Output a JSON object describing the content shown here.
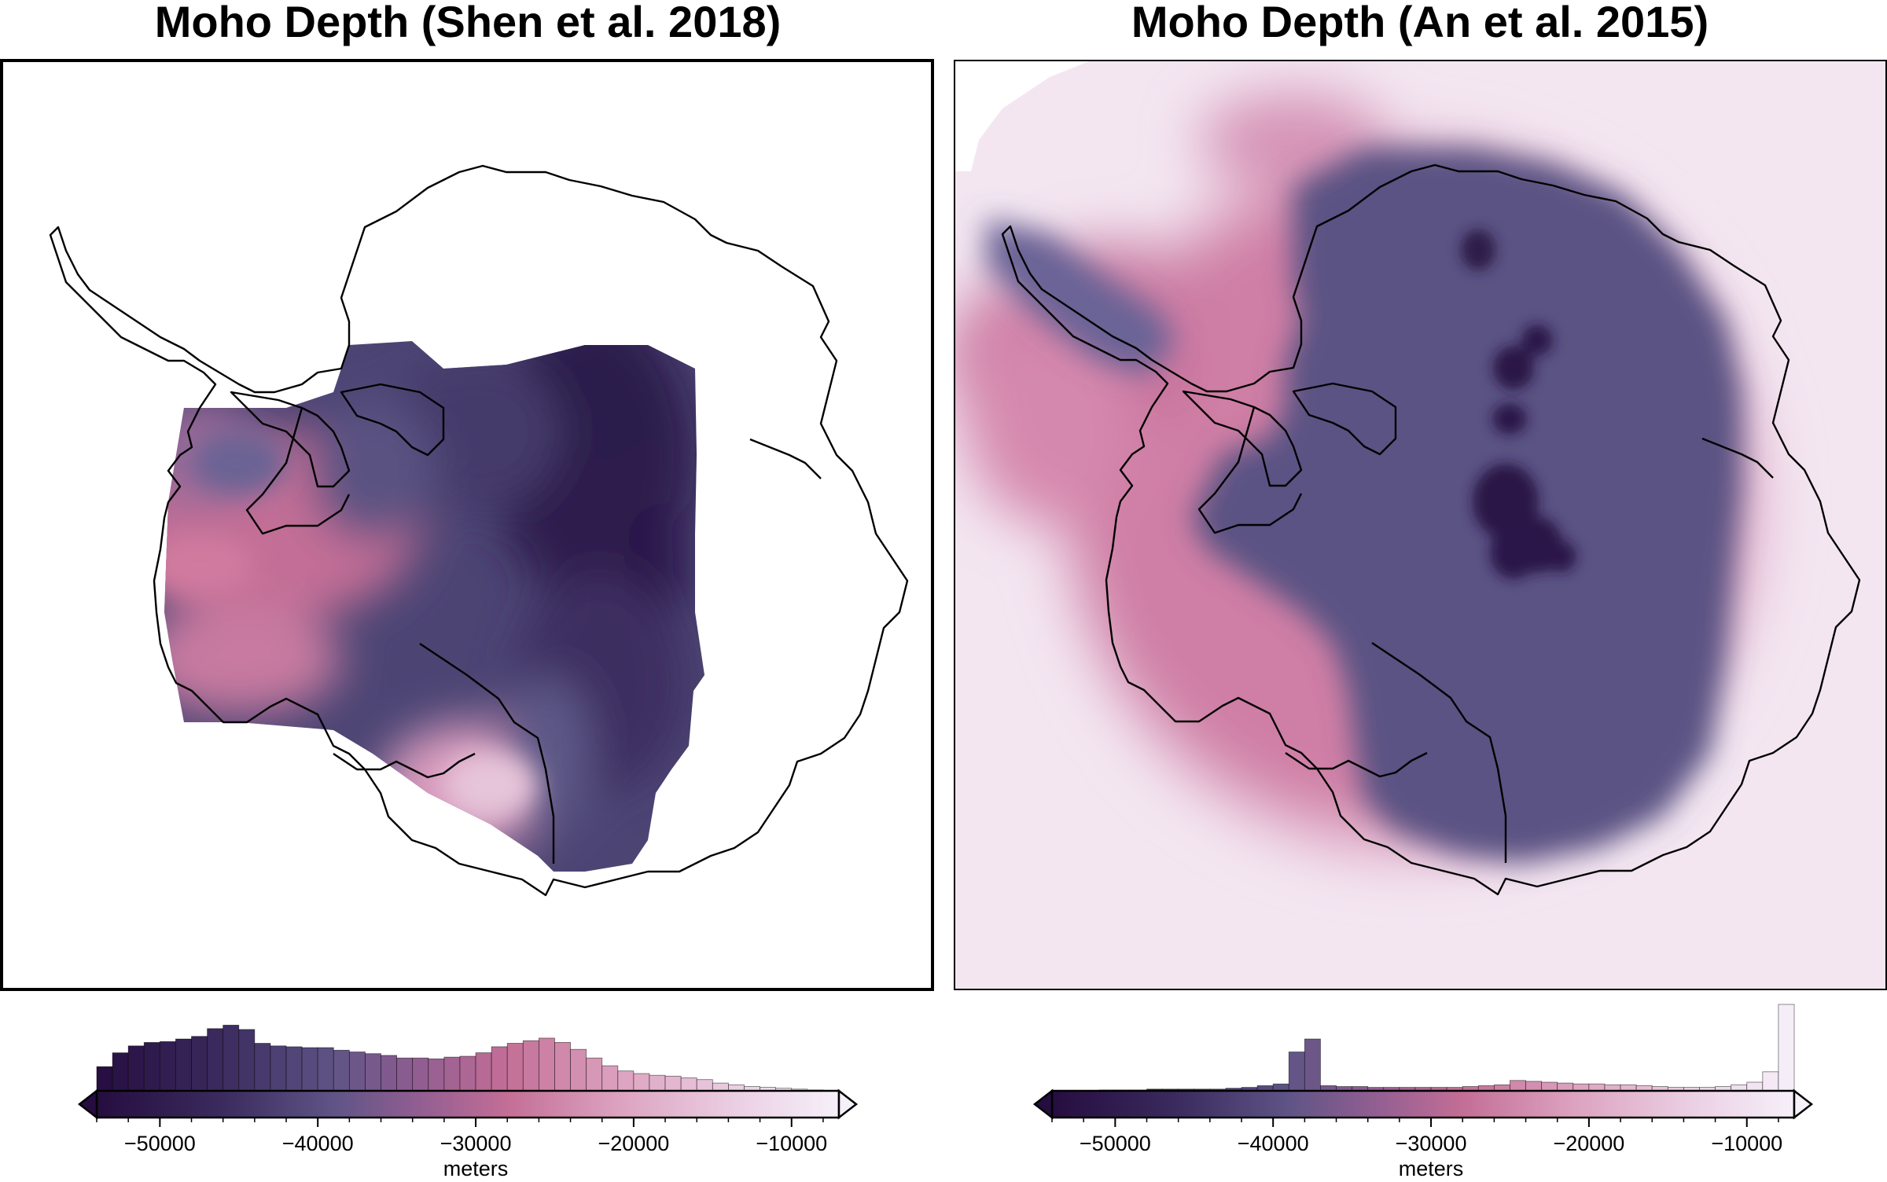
{
  "panels": [
    {
      "title": "Moho Depth (Shen et al. 2018)",
      "colorbar": {
        "unit_label": "meters",
        "range": [
          -54000,
          -7000
        ],
        "ticks": [
          -50000,
          -40000,
          -30000,
          -20000,
          -10000
        ],
        "tick_labels": [
          "−50000",
          "−40000",
          "−30000",
          "−20000",
          "−10000"
        ],
        "extend": "both"
      }
    },
    {
      "title": "Moho Depth (An et al. 2015)",
      "colorbar": {
        "unit_label": "meters",
        "range": [
          -54000,
          -7000
        ],
        "ticks": [
          -50000,
          -40000,
          -30000,
          -20000,
          -10000
        ],
        "tick_labels": [
          "−50000",
          "−40000",
          "−30000",
          "−20000",
          "−10000"
        ],
        "extend": "both"
      }
    }
  ],
  "colormap": {
    "name": "acton",
    "stops": [
      {
        "v": -54000,
        "c": "#260d40"
      },
      {
        "v": -46000,
        "c": "#3b2b5e"
      },
      {
        "v": -39000,
        "c": "#5f5486"
      },
      {
        "v": -34000,
        "c": "#8e5d91"
      },
      {
        "v": -28000,
        "c": "#c36e96"
      },
      {
        "v": -21000,
        "c": "#dca2bf"
      },
      {
        "v": -13000,
        "c": "#ecd2e5"
      },
      {
        "v": -7000,
        "c": "#f6f0fa"
      }
    ]
  },
  "chart_data": [
    {
      "type": "histogram",
      "panel": "Moho Depth (Shen et al. 2018)",
      "xlabel": "meters",
      "xlim": [
        -54000,
        -7000
      ],
      "bin_width": 1000,
      "bin_start": -54000,
      "relative_heights": [
        0.28,
        0.44,
        0.52,
        0.56,
        0.57,
        0.6,
        0.63,
        0.72,
        0.76,
        0.71,
        0.55,
        0.52,
        0.51,
        0.5,
        0.5,
        0.47,
        0.45,
        0.43,
        0.41,
        0.38,
        0.38,
        0.37,
        0.39,
        0.4,
        0.44,
        0.51,
        0.55,
        0.58,
        0.61,
        0.56,
        0.48,
        0.38,
        0.29,
        0.23,
        0.2,
        0.18,
        0.17,
        0.15,
        0.13,
        0.09,
        0.07,
        0.05,
        0.04,
        0.03,
        0.02,
        0.01,
        0.0
      ]
    },
    {
      "type": "histogram",
      "panel": "Moho Depth (An et al. 2015)",
      "xlabel": "meters",
      "xlim": [
        -54000,
        -7000
      ],
      "bin_width": 1000,
      "bin_start": -54000,
      "relative_heights": [
        0.0,
        0.0,
        0.0,
        0.01,
        0.01,
        0.01,
        0.02,
        0.02,
        0.02,
        0.02,
        0.02,
        0.03,
        0.04,
        0.06,
        0.08,
        0.45,
        0.6,
        0.06,
        0.05,
        0.05,
        0.04,
        0.04,
        0.04,
        0.04,
        0.04,
        0.04,
        0.05,
        0.06,
        0.07,
        0.12,
        0.11,
        0.1,
        0.09,
        0.08,
        0.08,
        0.07,
        0.07,
        0.06,
        0.05,
        0.04,
        0.04,
        0.04,
        0.05,
        0.07,
        0.1,
        0.22,
        1.0
      ]
    }
  ]
}
